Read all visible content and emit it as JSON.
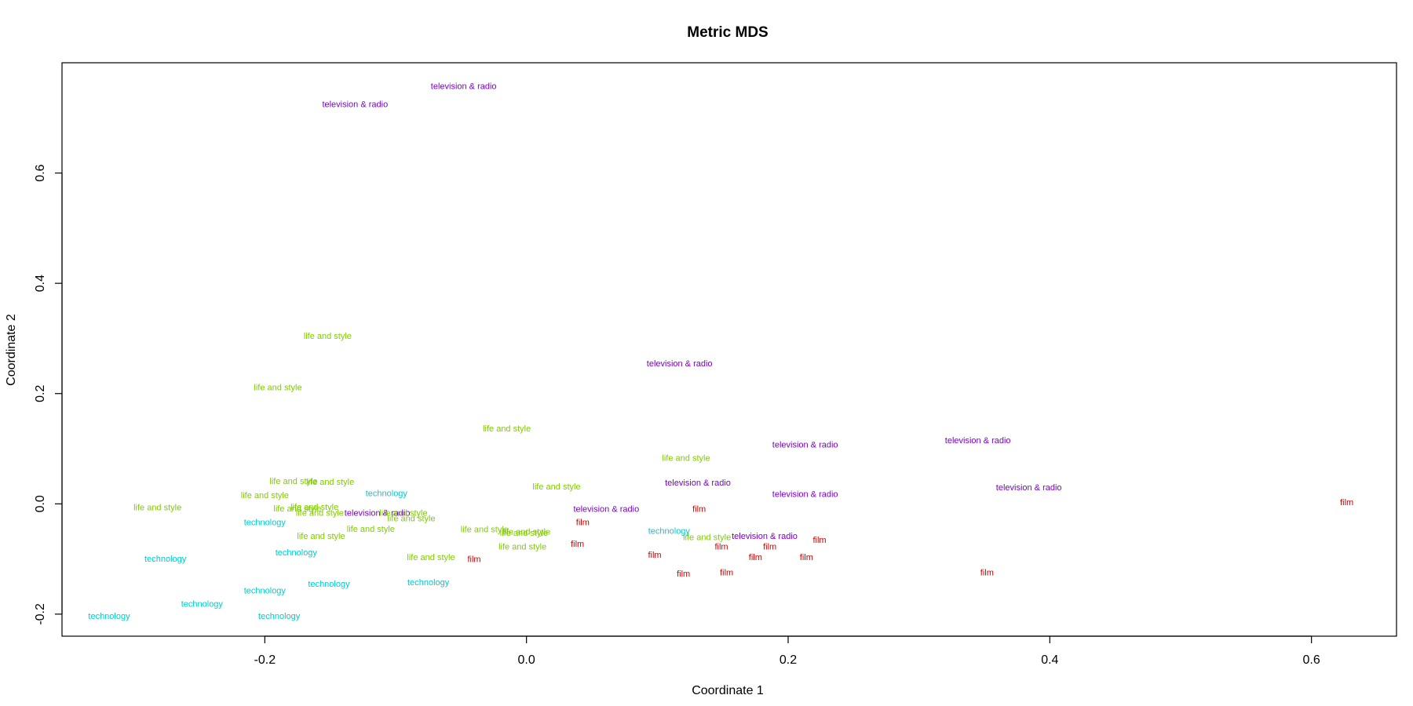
{
  "chart_data": {
    "type": "scatter",
    "title": "Metric MDS",
    "xlabel": "Coordinate 1",
    "ylabel": "Coordinate 2",
    "xlim": [
      -0.355,
      0.665
    ],
    "ylim": [
      -0.24,
      0.8
    ],
    "x_ticks": [
      -0.2,
      0.0,
      0.2,
      0.4,
      0.6
    ],
    "x_tick_labels": [
      "-0.2",
      "0.0",
      "0.2",
      "0.4",
      "0.6"
    ],
    "y_ticks": [
      -0.2,
      0.0,
      0.2,
      0.4,
      0.6
    ],
    "y_tick_labels": [
      "-0.2",
      "0.0",
      "0.2",
      "0.4",
      "0.6"
    ],
    "grid": false,
    "legend": "none",
    "colors": {
      "film": "#cc0000",
      "television & radio": "#7a00cc",
      "life and style": "#80cc00",
      "technology": "#00cccc"
    },
    "points": [
      {
        "label": "television & radio",
        "x": -0.048,
        "y": 0.758
      },
      {
        "label": "television & radio",
        "x": -0.131,
        "y": 0.725
      },
      {
        "label": "television & radio",
        "x": 0.117,
        "y": 0.255
      },
      {
        "label": "television & radio",
        "x": 0.213,
        "y": 0.108
      },
      {
        "label": "television & radio",
        "x": 0.345,
        "y": 0.116
      },
      {
        "label": "television & radio",
        "x": 0.384,
        "y": 0.03
      },
      {
        "label": "television & radio",
        "x": 0.131,
        "y": 0.039
      },
      {
        "label": "television & radio",
        "x": 0.213,
        "y": 0.018
      },
      {
        "label": "television & radio",
        "x": 0.061,
        "y": -0.009
      },
      {
        "label": "television & radio",
        "x": -0.114,
        "y": -0.016
      },
      {
        "label": "television & radio",
        "x": 0.182,
        "y": -0.058
      },
      {
        "label": "film",
        "x": 0.627,
        "y": 0.003
      },
      {
        "label": "film",
        "x": 0.132,
        "y": -0.009
      },
      {
        "label": "film",
        "x": 0.043,
        "y": -0.033
      },
      {
        "label": "film",
        "x": 0.039,
        "y": -0.072
      },
      {
        "label": "film",
        "x": 0.224,
        "y": -0.065
      },
      {
        "label": "film",
        "x": 0.149,
        "y": -0.077
      },
      {
        "label": "film",
        "x": 0.186,
        "y": -0.077
      },
      {
        "label": "film",
        "x": 0.098,
        "y": -0.092
      },
      {
        "label": "film",
        "x": 0.175,
        "y": -0.096
      },
      {
        "label": "film",
        "x": 0.214,
        "y": -0.096
      },
      {
        "label": "film",
        "x": -0.04,
        "y": -0.1
      },
      {
        "label": "film",
        "x": 0.12,
        "y": -0.126
      },
      {
        "label": "film",
        "x": 0.153,
        "y": -0.124
      },
      {
        "label": "film",
        "x": 0.352,
        "y": -0.124
      },
      {
        "label": "life and style",
        "x": -0.152,
        "y": 0.305
      },
      {
        "label": "life and style",
        "x": -0.19,
        "y": 0.212
      },
      {
        "label": "life and style",
        "x": -0.015,
        "y": 0.137
      },
      {
        "label": "life and style",
        "x": 0.122,
        "y": 0.084
      },
      {
        "label": "life and style",
        "x": -0.178,
        "y": 0.042
      },
      {
        "label": "life and style",
        "x": -0.15,
        "y": 0.04
      },
      {
        "label": "life and style",
        "x": 0.023,
        "y": 0.032
      },
      {
        "label": "life and style",
        "x": -0.2,
        "y": 0.016
      },
      {
        "label": "life and style",
        "x": -0.282,
        "y": -0.006
      },
      {
        "label": "life and style",
        "x": -0.175,
        "y": -0.008
      },
      {
        "label": "life and style",
        "x": -0.162,
        "y": -0.005
      },
      {
        "label": "life and style",
        "x": -0.158,
        "y": -0.016
      },
      {
        "label": "life and style",
        "x": -0.094,
        "y": -0.016
      },
      {
        "label": "life and style",
        "x": -0.088,
        "y": -0.026
      },
      {
        "label": "life and style",
        "x": -0.119,
        "y": -0.045
      },
      {
        "label": "life and style",
        "x": -0.157,
        "y": -0.058
      },
      {
        "label": "life and style",
        "x": -0.032,
        "y": -0.046
      },
      {
        "label": "life and style",
        "x": 0.0,
        "y": -0.05
      },
      {
        "label": "life and style",
        "x": -0.002,
        "y": -0.052
      },
      {
        "label": "life and style",
        "x": -0.073,
        "y": -0.096
      },
      {
        "label": "life and style",
        "x": -0.003,
        "y": -0.077
      },
      {
        "label": "life and style",
        "x": 0.138,
        "y": -0.06
      },
      {
        "label": "technology",
        "x": -0.107,
        "y": 0.02
      },
      {
        "label": "technology",
        "x": -0.2,
        "y": -0.033
      },
      {
        "label": "technology",
        "x": 0.109,
        "y": -0.049
      },
      {
        "label": "technology",
        "x": -0.276,
        "y": -0.099
      },
      {
        "label": "technology",
        "x": -0.176,
        "y": -0.088
      },
      {
        "label": "technology",
        "x": -0.075,
        "y": -0.142
      },
      {
        "label": "technology",
        "x": -0.151,
        "y": -0.145
      },
      {
        "label": "technology",
        "x": -0.2,
        "y": -0.157
      },
      {
        "label": "technology",
        "x": -0.248,
        "y": -0.181
      },
      {
        "label": "technology",
        "x": -0.319,
        "y": -0.203
      },
      {
        "label": "technology",
        "x": -0.189,
        "y": -0.203
      }
    ]
  }
}
